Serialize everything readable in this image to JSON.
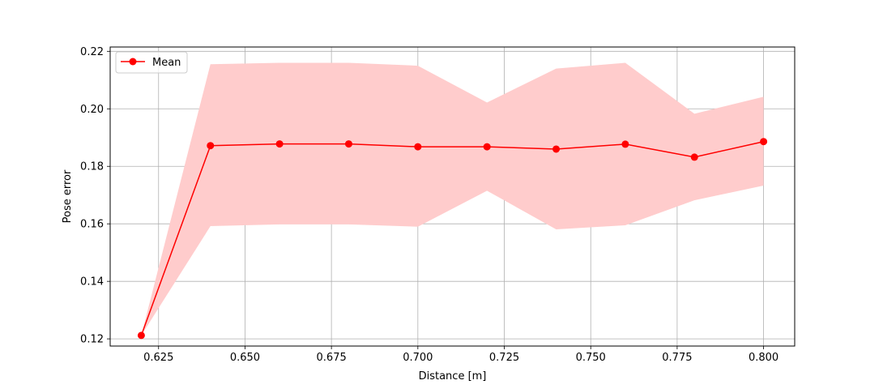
{
  "chart_data": {
    "type": "line",
    "xlabel": "Distance [m]",
    "ylabel": "Pose error",
    "xlim": [
      0.611,
      0.809
    ],
    "ylim": [
      0.1175,
      0.2215
    ],
    "x_ticks": [
      0.625,
      0.65,
      0.675,
      0.7,
      0.725,
      0.75,
      0.775,
      0.8
    ],
    "x_tick_labels": [
      "0.625",
      "0.650",
      "0.675",
      "0.700",
      "0.725",
      "0.750",
      "0.775",
      "0.800"
    ],
    "y_ticks": [
      0.12,
      0.14,
      0.16,
      0.18,
      0.2,
      0.22
    ],
    "y_tick_labels": [
      "0.12",
      "0.14",
      "0.16",
      "0.18",
      "0.20",
      "0.22"
    ],
    "grid": true,
    "legend_position": "top-left",
    "x": [
      0.62,
      0.64,
      0.66,
      0.68,
      0.7,
      0.72,
      0.74,
      0.76,
      0.78,
      0.8
    ],
    "series": [
      {
        "name": "Mean",
        "color": "#ff0000",
        "values": [
          0.1212,
          0.1872,
          0.1878,
          0.1878,
          0.1868,
          0.1868,
          0.186,
          0.1877,
          0.1832,
          0.1886
        ]
      }
    ],
    "band": {
      "color": "#ffcccc",
      "lower": [
        0.1212,
        0.1592,
        0.1598,
        0.1598,
        0.159,
        0.1715,
        0.1581,
        0.1595,
        0.1682,
        0.1733
      ],
      "upper": [
        0.1212,
        0.2155,
        0.216,
        0.216,
        0.215,
        0.2022,
        0.214,
        0.216,
        0.1983,
        0.2042
      ]
    }
  }
}
